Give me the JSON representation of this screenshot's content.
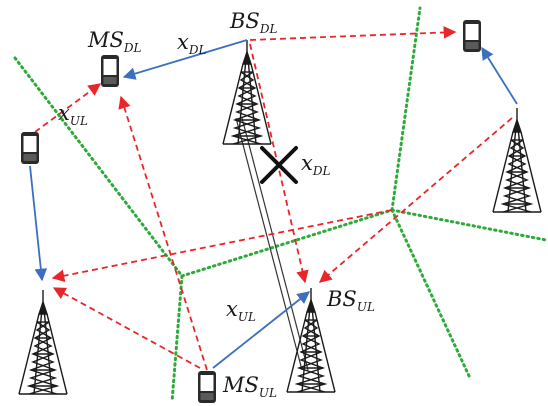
{
  "diagram": {
    "colors": {
      "cell_boundary": "#2eaa3a",
      "interference_link": "#e8262a",
      "desired_link": "#3b6fbf",
      "tower": "#1a1a1a",
      "backhaul": "#333333",
      "block_mark": "#111111"
    },
    "labels": {
      "bs_dl": {
        "base": "BS",
        "sub": "DL"
      },
      "ms_dl": {
        "base": "MS",
        "sub": "DL"
      },
      "bs_ul": {
        "base": "BS",
        "sub": "UL"
      },
      "ms_ul": {
        "base": "MS",
        "sub": "UL"
      },
      "x_dl_top": {
        "base": "x",
        "sub": "DL"
      },
      "x_dl_cross": {
        "base": "x",
        "sub": "DL"
      },
      "x_ul_left": {
        "base": "x",
        "sub": "UL"
      },
      "x_ul_bottom": {
        "base": "x",
        "sub": "UL"
      }
    },
    "icons": {
      "tower": "cell-tower-icon",
      "phone": "mobile-phone-icon",
      "blocked": "cross-mark-icon"
    }
  }
}
